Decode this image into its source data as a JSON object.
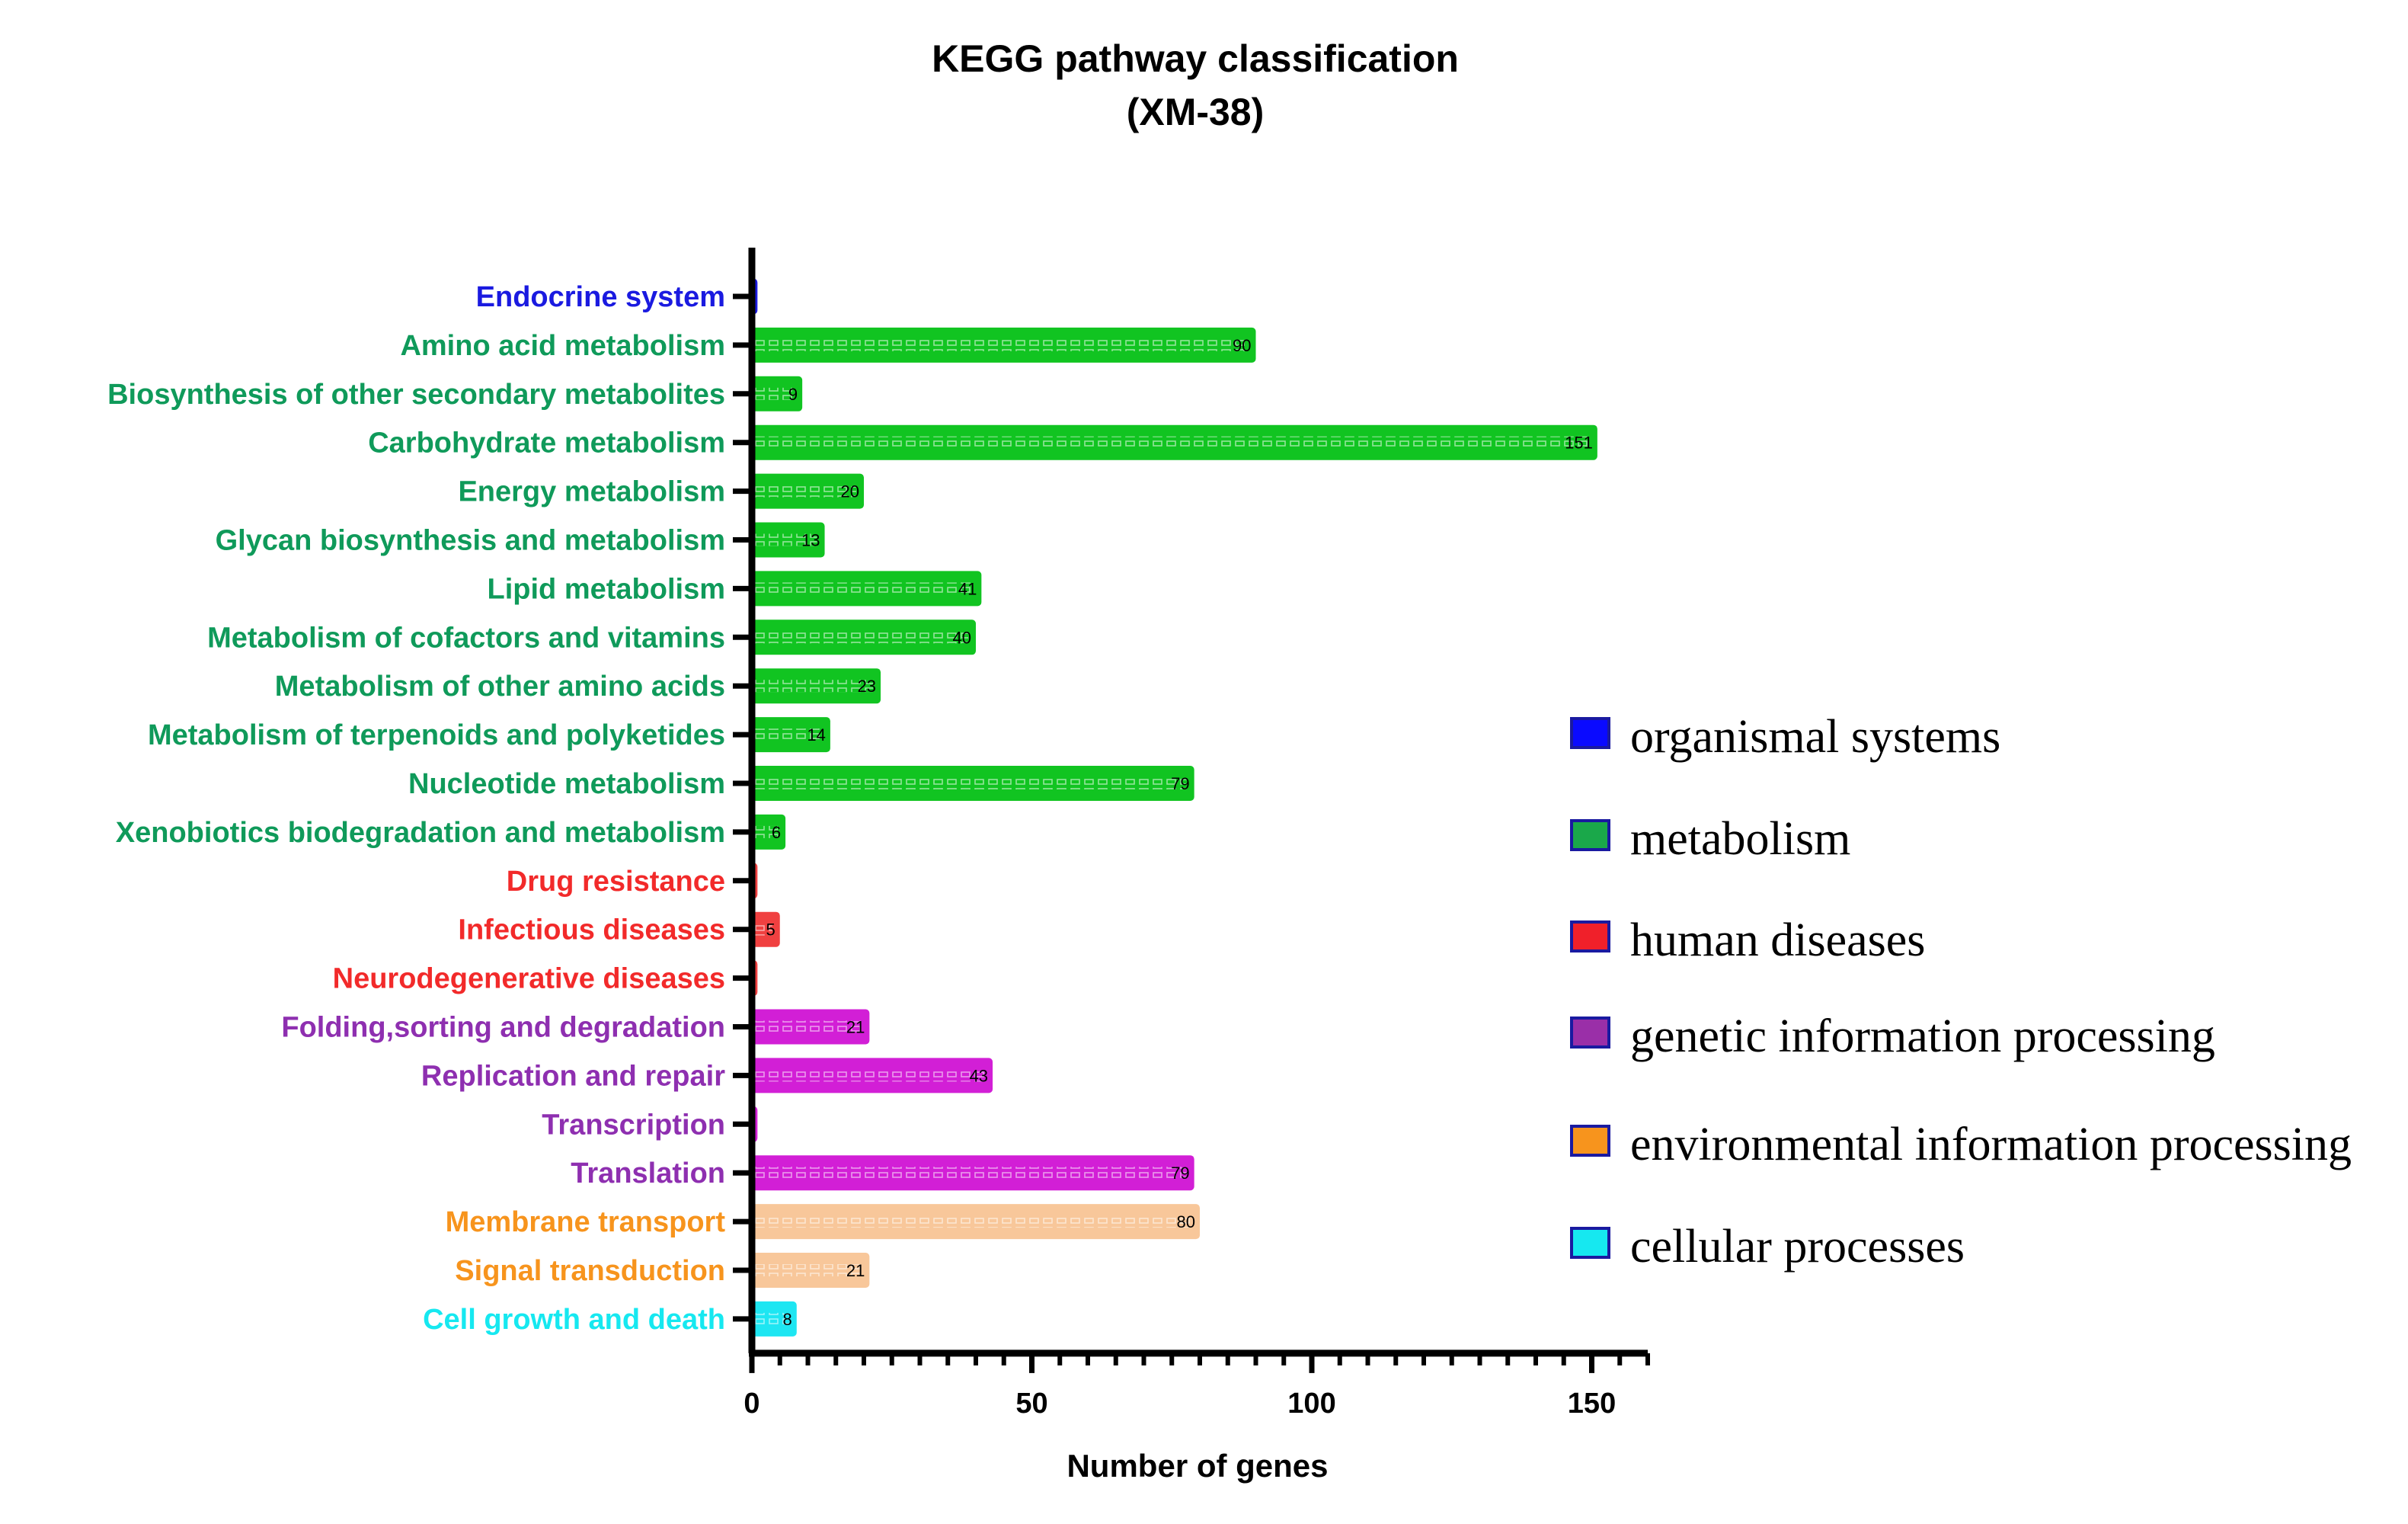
{
  "chart_data": {
    "type": "bar",
    "orientation": "horizontal",
    "title": "KEGG pathway classification",
    "subtitle": "(XM-38)",
    "xlabel": "Number of genes",
    "ylabel": "",
    "xlim": [
      0,
      160
    ],
    "xticks": [
      0,
      50,
      100,
      150
    ],
    "grid": false,
    "legend_position": "right",
    "categories": [
      "Endocrine system",
      "Amino acid metabolism",
      "Biosynthesis of other secondary metabolites",
      "Carbohydrate metabolism",
      "Energy metabolism",
      "Glycan biosynthesis and metabolism",
      "Lipid metabolism",
      "Metabolism of cofactors and vitamins",
      "Metabolism of other amino acids",
      "Metabolism of terpenoids and polyketides",
      "Nucleotide metabolism",
      "Xenobiotics biodegradation and metabolism",
      "Drug resistance",
      "Infectious diseases",
      "Neurodegenerative diseases",
      "Folding,sorting and degradation",
      "Replication and repair",
      "Transcription",
      "Translation",
      "Membrane transport",
      "Signal transduction",
      "Cell growth and death"
    ],
    "values": [
      1,
      90,
      9,
      151,
      20,
      13,
      41,
      40,
      23,
      14,
      79,
      6,
      1,
      5,
      1,
      21,
      43,
      1,
      79,
      80,
      21,
      8
    ],
    "value_labels": [
      "",
      "90",
      "9",
      "151",
      "20",
      "13",
      "41",
      "40",
      "23",
      "14",
      "79",
      "6",
      "",
      "5",
      "",
      "21",
      "43",
      "",
      "79",
      "80",
      "21",
      "8"
    ],
    "groups": [
      "organismal systems",
      "metabolism",
      "metabolism",
      "metabolism",
      "metabolism",
      "metabolism",
      "metabolism",
      "metabolism",
      "metabolism",
      "metabolism",
      "metabolism",
      "metabolism",
      "human diseases",
      "human diseases",
      "human diseases",
      "genetic information processing",
      "genetic information processing",
      "genetic information processing",
      "genetic information processing",
      "environmental information processing",
      "environmental information processing",
      "cellular processes"
    ],
    "legend": [
      {
        "name": "organismal systems",
        "color": "#0a0aff"
      },
      {
        "name": "metabolism",
        "color": "#1aa84a"
      },
      {
        "name": "human diseases",
        "color": "#f0202a"
      },
      {
        "name": "genetic information processing",
        "color": "#9a2fa8"
      },
      {
        "name": "environmental information processing",
        "color": "#f7941d"
      },
      {
        "name": "cellular processes",
        "color": "#16e8f0"
      }
    ],
    "group_styles": {
      "organismal systems": {
        "label_color": "#1a1ae0",
        "bar_color": "#1a1ae0"
      },
      "metabolism": {
        "label_color": "#0f9a5a",
        "bar_color": "#11c421"
      },
      "human diseases": {
        "label_color": "#f22a2a",
        "bar_color": "#f04040"
      },
      "genetic information processing": {
        "label_color": "#8e2fb0",
        "bar_color": "#d21fd6"
      },
      "environmental information processing": {
        "label_color": "#f7941d",
        "bar_color": "#f8c79a"
      },
      "cellular processes": {
        "label_color": "#16e8f0",
        "bar_color": "#1ee6f2"
      }
    }
  }
}
